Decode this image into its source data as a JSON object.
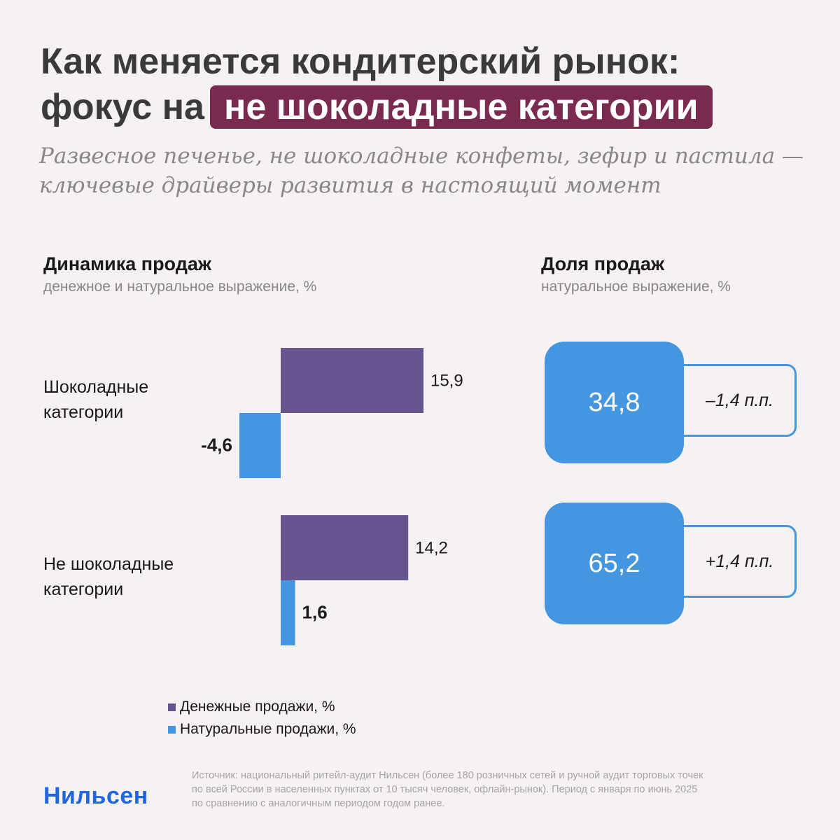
{
  "header": {
    "title_line1": "Как меняется кондитерский рынок:",
    "title_line2_prefix": "фокус на",
    "title_highlight": "не шоколадные категории",
    "subtitle_line1": "Развесное печенье, не шоколадные конфеты, зефир и пастила —",
    "subtitle_line2": "ключевые драйверы развития в настоящий момент"
  },
  "sections": {
    "dynamics_title": "Динамика продаж",
    "dynamics_sub": "денежное и натуральное выражение, %",
    "share_title": "Доля продаж",
    "share_sub": "натуральное выражение, %"
  },
  "category_labels": {
    "cat1_line1": "Шоколадные",
    "cat1_line2": "категории",
    "cat2_line1": "Не шоколадные",
    "cat2_line2": "категории"
  },
  "chart_data": {
    "type": "bar",
    "categories": [
      "Шоколадные категории",
      "Не шоколадные категории"
    ],
    "series": [
      {
        "name": "Денежные продажи, %",
        "values": [
          15.9,
          14.2
        ],
        "labels": [
          "15,9",
          "14,2"
        ],
        "color": "#67558f"
      },
      {
        "name": "Натуральные продажи, %",
        "values": [
          -4.6,
          1.6
        ],
        "labels": [
          "-4,6",
          "1,6"
        ],
        "color": "#4596e0"
      }
    ]
  },
  "share": [
    {
      "value": "34,8",
      "change": "–1,4 п.п."
    },
    {
      "value": "65,2",
      "change": "+1,4 п.п."
    }
  ],
  "legend": {
    "money": "Денежные продажи, %",
    "natural": "Натуральные продажи, %"
  },
  "footer": {
    "logo": "Нильсен",
    "source_line1": "Источник: национальный ритейл-аудит Нильсен (более 180 розничных сетей и ручной аудит торговых точек",
    "source_line2": "по всей России в населенных пунктах от 10 тысяч человек, офлайн-рынок). Период с января по июнь 2025",
    "source_line3": "по сравнению с аналогичным периодом годом ранее."
  },
  "colors": {
    "money": "#67558f",
    "natural": "#4596e0",
    "highlight": "#7b2a4f",
    "brand": "#2066e0"
  }
}
